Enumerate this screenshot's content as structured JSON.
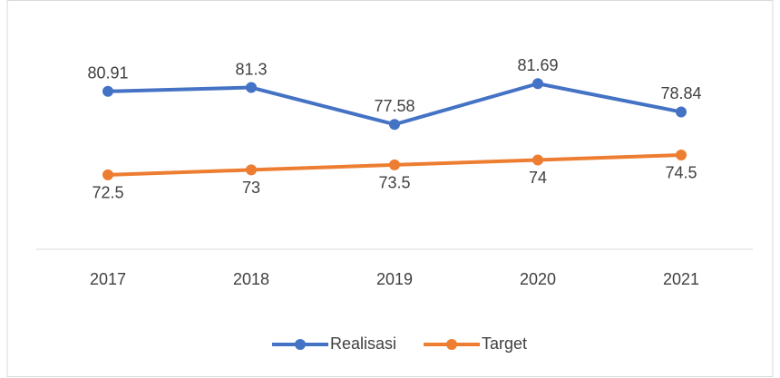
{
  "chart_data": {
    "type": "line",
    "categories": [
      "2017",
      "2018",
      "2019",
      "2020",
      "2021"
    ],
    "series": [
      {
        "name": "Realisasi",
        "color": "#4472c4",
        "values": [
          80.91,
          81.3,
          77.58,
          81.69,
          78.84
        ],
        "label_position": "above"
      },
      {
        "name": "Target",
        "color": "#ed7d31",
        "values": [
          72.5,
          73,
          73.5,
          74,
          74.5
        ],
        "label_position": "below"
      }
    ],
    "ylim": [
      65,
      85
    ],
    "legend": "bottom"
  }
}
